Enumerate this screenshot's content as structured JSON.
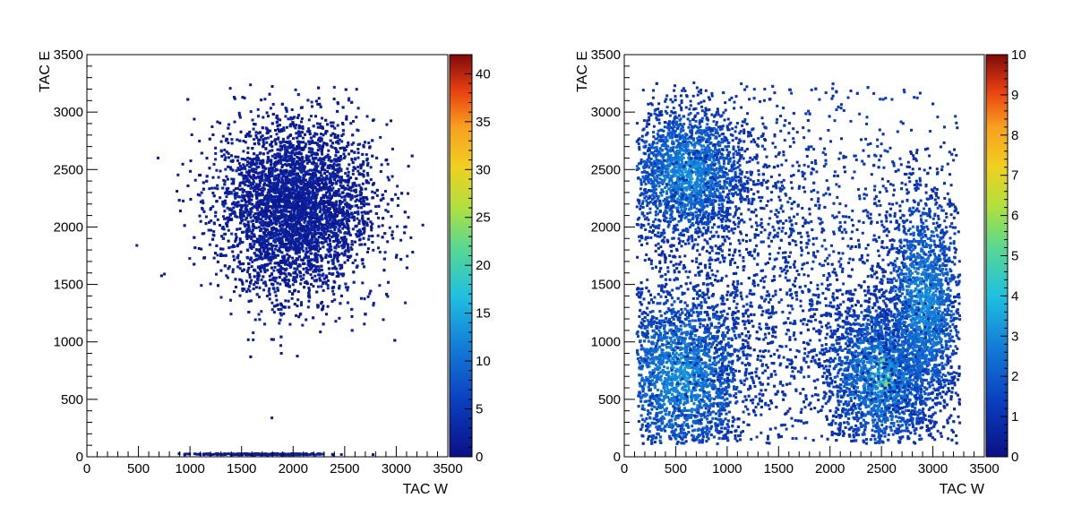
{
  "chart_data": [
    {
      "type": "heatmap",
      "title": "",
      "xlabel": "TAC W",
      "ylabel": "TAC E",
      "xlim": [
        0,
        3500
      ],
      "ylim": [
        0,
        3500
      ],
      "xticks": [
        0,
        500,
        1000,
        1500,
        2000,
        2500,
        3000,
        3500
      ],
      "yticks": [
        0,
        500,
        1000,
        1500,
        2000,
        2500,
        3000,
        3500
      ],
      "zlim": [
        0,
        42
      ],
      "zticks": [
        0,
        5,
        10,
        15,
        20,
        25,
        30,
        35,
        40
      ],
      "colormap": "rainbow",
      "grid": false,
      "clusters": [
        {
          "x_center": 2000,
          "y_center": 2150,
          "x_spread": 380,
          "y_spread": 380,
          "density": "high"
        },
        {
          "x_center": 1700,
          "y_center": 0,
          "x_spread": 350,
          "y_spread": 0,
          "density": "high"
        }
      ]
    },
    {
      "type": "heatmap",
      "title": "",
      "xlabel": "TAC W",
      "ylabel": "TAC E",
      "xlim": [
        0,
        3500
      ],
      "ylim": [
        0,
        3500
      ],
      "xticks": [
        0,
        500,
        1000,
        1500,
        2000,
        2500,
        3000,
        3500
      ],
      "yticks": [
        0,
        500,
        1000,
        1500,
        2000,
        2500,
        3000,
        3500
      ],
      "zlim": [
        0,
        10
      ],
      "zticks": [
        0,
        1,
        2,
        3,
        4,
        5,
        6,
        7,
        8,
        9,
        10
      ],
      "colormap": "rainbow",
      "grid": false,
      "clusters": [
        {
          "x_center": 600,
          "y_center": 2450,
          "x_spread": 300,
          "y_spread": 300,
          "density": "medium"
        },
        {
          "x_center": 550,
          "y_center": 700,
          "x_spread": 350,
          "y_spread": 400,
          "density": "high"
        },
        {
          "x_center": 2500,
          "y_center": 700,
          "x_spread": 300,
          "y_spread": 350,
          "density": "high"
        },
        {
          "x_center": 2900,
          "y_center": 1300,
          "x_spread": 200,
          "y_spread": 500,
          "density": "medium"
        },
        {
          "x_center": 1500,
          "y_center": 1600,
          "x_spread": 900,
          "y_spread": 900,
          "density": "low"
        }
      ]
    }
  ]
}
